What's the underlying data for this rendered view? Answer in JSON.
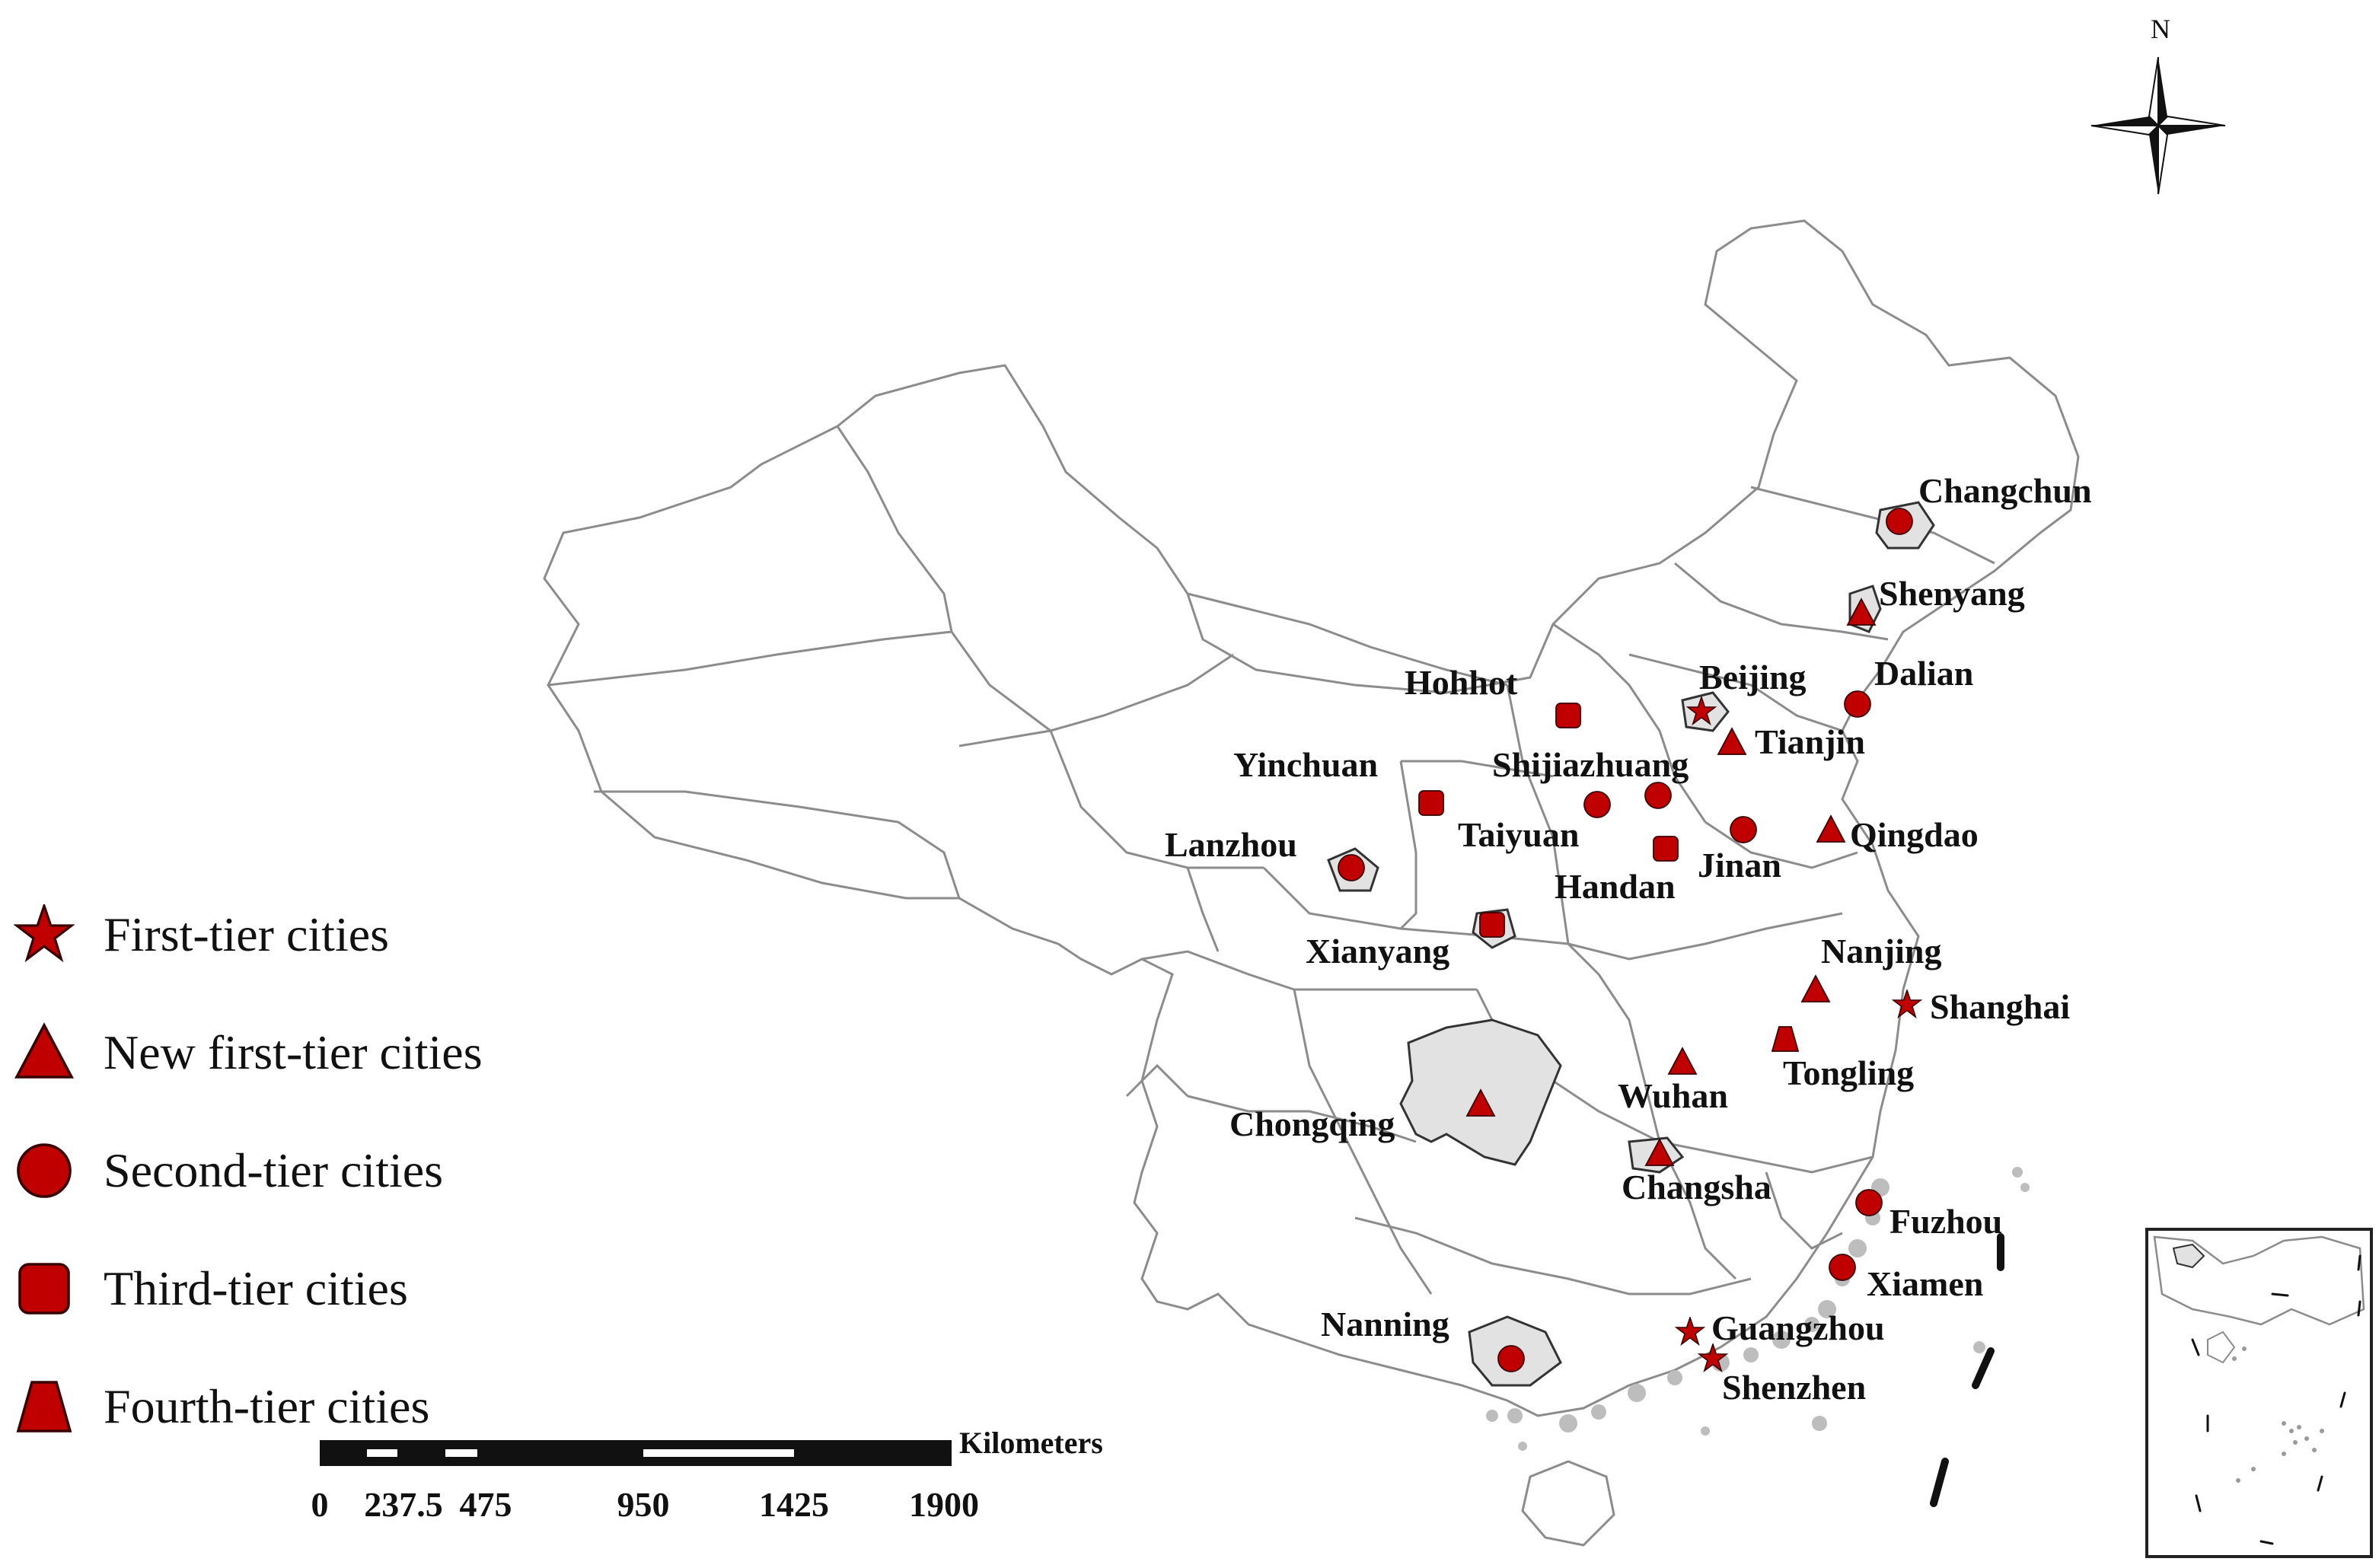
{
  "compass": {
    "north_label": "N"
  },
  "legend": [
    {
      "symbol": "star",
      "label": "First-tier cities"
    },
    {
      "symbol": "triangle",
      "label": "New first-tier cities"
    },
    {
      "symbol": "circle",
      "label": "Second-tier cities"
    },
    {
      "symbol": "square",
      "label": "Third-tier cities"
    },
    {
      "symbol": "trapezoid",
      "label": "Fourth-tier cities"
    }
  ],
  "scale_bar": {
    "unit": "Kilometers",
    "ticks": [
      "0",
      "237.5",
      "475",
      "950",
      "1425",
      "1900"
    ]
  },
  "cities": [
    {
      "name": "Changchun",
      "tier": "circle"
    },
    {
      "name": "Shenyang",
      "tier": "triangle"
    },
    {
      "name": "Beijing",
      "tier": "star"
    },
    {
      "name": "Dalian",
      "tier": "circle"
    },
    {
      "name": "Hohhot",
      "tier": "square"
    },
    {
      "name": "Tianjin",
      "tier": "triangle"
    },
    {
      "name": "Yinchuan",
      "tier": "square"
    },
    {
      "name": "Shijiazhuang",
      "tier": "circle"
    },
    {
      "name": "Taiyuan",
      "tier": "circle"
    },
    {
      "name": "Handan",
      "tier": "square"
    },
    {
      "name": "Jinan",
      "tier": "circle"
    },
    {
      "name": "Qingdao",
      "tier": "triangle"
    },
    {
      "name": "Lanzhou",
      "tier": "circle"
    },
    {
      "name": "Xianyang",
      "tier": "square"
    },
    {
      "name": "Nanjing",
      "tier": "triangle"
    },
    {
      "name": "Shanghai",
      "tier": "star"
    },
    {
      "name": "Tongling",
      "tier": "trapezoid"
    },
    {
      "name": "Wuhan",
      "tier": "triangle"
    },
    {
      "name": "Chongqing",
      "tier": "triangle"
    },
    {
      "name": "Changsha",
      "tier": "triangle"
    },
    {
      "name": "Fuzhou",
      "tier": "circle"
    },
    {
      "name": "Xiamen",
      "tier": "circle"
    },
    {
      "name": "Nanning",
      "tier": "circle"
    },
    {
      "name": "Guangzhou",
      "tier": "star"
    },
    {
      "name": "Shenzhen",
      "tier": "star"
    }
  ],
  "colors": {
    "marker_fill": "#c00000",
    "marker_stroke": "#3a0000",
    "boundary": "#8c8c8c",
    "highlight_region": "#e2e2e2",
    "coast_islands": "#bdbdbd"
  }
}
